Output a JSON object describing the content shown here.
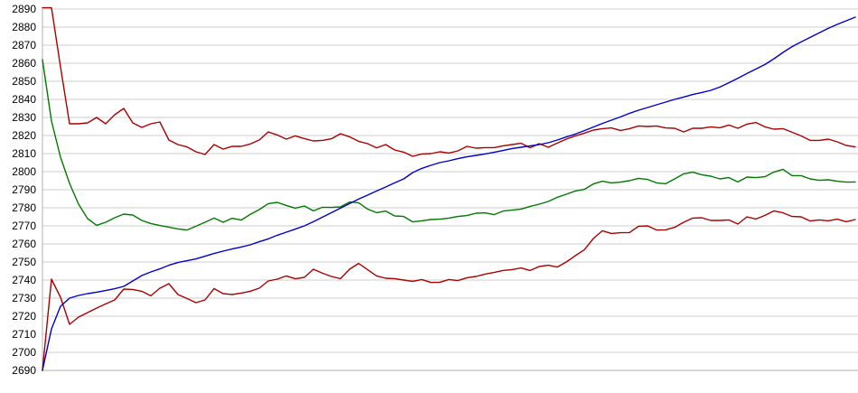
{
  "chart_data": {
    "type": "line",
    "title": "",
    "legend": "none",
    "grid": "horizontal",
    "x_axis": {
      "labels_visible": false,
      "unit": "sample-index",
      "count": 91
    },
    "y_axis": {
      "min": 2690,
      "max": 2890,
      "tick_step": 10,
      "tick_labels": [
        "2890",
        "2880",
        "2870",
        "2860",
        "2850",
        "2840",
        "2830",
        "2820",
        "2810",
        "2800",
        "2790",
        "2780",
        "2770",
        "2760",
        "2750",
        "2740",
        "2730",
        "2720",
        "2710",
        "2700",
        "2690"
      ]
    },
    "colors": {
      "background": "#ffffff",
      "grid": "#cccccc",
      "axis": "#b0b0b0",
      "label": "#000000",
      "red": "#aa0000",
      "green": "#007a00",
      "blue": "#0000cc"
    },
    "series": [
      {
        "name": "red-upper-band-line",
        "color": "#aa0000",
        "values": [
          2890.7,
          2890.7,
          2858,
          2826.5,
          2826.5,
          2827,
          2830,
          2826.5,
          2831.5,
          2835,
          2827,
          2824.5,
          2826.5,
          2827.5,
          2817.5,
          2815,
          2813.7,
          2811,
          2809.5,
          2815,
          2812.5,
          2814,
          2814,
          2815.3,
          2817.5,
          2822,
          2820.3,
          2818,
          2819.8,
          2818.3,
          2817,
          2817.3,
          2818.2,
          2821,
          2819.3,
          2816.8,
          2815.5,
          2813.2,
          2815,
          2812,
          2810.8,
          2808.5,
          2809.8,
          2810,
          2811,
          2810.3,
          2811.5,
          2814,
          2813,
          2813.3,
          2813.3,
          2814.3,
          2815,
          2815.7,
          2813.2,
          2815.5,
          2813.5,
          2815.8,
          2818,
          2819.8,
          2821.3,
          2823,
          2823.8,
          2824.2,
          2822.8,
          2823.8,
          2825.3,
          2825,
          2825.3,
          2824.2,
          2824,
          2822,
          2824,
          2824,
          2824.8,
          2824.3,
          2825.8,
          2824,
          2826.3,
          2827.2,
          2824.8,
          2823.5,
          2823.8,
          2821.8,
          2819.8,
          2817.3,
          2817.3,
          2818,
          2816.5,
          2814.5,
          2813.7
        ]
      },
      {
        "name": "green-middle-line",
        "color": "#007a00",
        "values": [
          2862,
          2828,
          2808,
          2793.5,
          2782,
          2774,
          2770.3,
          2772,
          2774.5,
          2776.5,
          2776,
          2773,
          2771.3,
          2770.2,
          2769.3,
          2768.3,
          2767.7,
          2769.8,
          2772,
          2774.3,
          2772,
          2774.2,
          2773.2,
          2776.3,
          2779,
          2782.3,
          2783,
          2781.3,
          2779.8,
          2781,
          2778.3,
          2780.3,
          2780.2,
          2780.5,
          2783.2,
          2782.8,
          2779.3,
          2777.3,
          2778.2,
          2775.5,
          2775.2,
          2772.2,
          2772.8,
          2773.5,
          2773.7,
          2774.3,
          2775.2,
          2775.7,
          2777,
          2777.2,
          2776.2,
          2778.2,
          2778.7,
          2779.3,
          2780.8,
          2782,
          2783.5,
          2785.8,
          2787.5,
          2789.3,
          2790.2,
          2793.2,
          2794.7,
          2793.8,
          2794.2,
          2795,
          2796.3,
          2795.7,
          2793.8,
          2793.3,
          2796,
          2798.8,
          2799.7,
          2798.3,
          2797.5,
          2796,
          2796.7,
          2794.3,
          2797,
          2796.7,
          2797.2,
          2799.8,
          2801.3,
          2797.8,
          2797.8,
          2796,
          2795.2,
          2795.5,
          2794.7,
          2794.2,
          2794.3
        ]
      },
      {
        "name": "red-lower-band-line",
        "color": "#aa0000",
        "values": [
          2690,
          2740.5,
          2730.5,
          2715.5,
          2719.5,
          2722,
          2724.5,
          2726.8,
          2729,
          2735,
          2734.8,
          2733.8,
          2731.3,
          2735.5,
          2738,
          2732,
          2729.8,
          2727.5,
          2729,
          2735.3,
          2732.5,
          2732,
          2732.8,
          2733.8,
          2735.5,
          2739.5,
          2740.5,
          2742.3,
          2740.7,
          2741.5,
          2746,
          2743.8,
          2742,
          2740.8,
          2746,
          2749.2,
          2745.8,
          2742.3,
          2741,
          2740.8,
          2740,
          2739.3,
          2740.3,
          2738.7,
          2738.8,
          2740.3,
          2739.7,
          2741.3,
          2742,
          2743.3,
          2744.2,
          2745.3,
          2745.8,
          2746.7,
          2745.3,
          2747.5,
          2748.2,
          2747.2,
          2750,
          2753.5,
          2756.8,
          2763,
          2767.3,
          2765.8,
          2766.2,
          2766.3,
          2769.8,
          2770,
          2767.7,
          2767.8,
          2769.2,
          2772,
          2774.3,
          2774.5,
          2773,
          2773,
          2773.3,
          2771,
          2775,
          2773.8,
          2775.8,
          2778.3,
          2777.2,
          2775.2,
          2775,
          2772.7,
          2773.3,
          2772.8,
          2773.7,
          2772.3,
          2773.5
        ]
      },
      {
        "name": "blue-rising-line",
        "color": "#0000cc",
        "values": [
          2690,
          2713,
          2725.5,
          2730,
          2731.5,
          2732.5,
          2733.3,
          2734.2,
          2735.2,
          2736.5,
          2739.5,
          2742.5,
          2744.5,
          2746.2,
          2748.2,
          2749.7,
          2750.7,
          2751.7,
          2753.2,
          2754.7,
          2756,
          2757.2,
          2758.3,
          2759.5,
          2761.2,
          2762.8,
          2764.8,
          2766.5,
          2768.2,
          2770,
          2772.3,
          2774.8,
          2777.3,
          2779.8,
          2782.3,
          2784.8,
          2787,
          2789.3,
          2791.5,
          2793.8,
          2796,
          2799.5,
          2801.8,
          2803.5,
          2805,
          2806,
          2807.2,
          2808.2,
          2809,
          2809.8,
          2810.7,
          2811.7,
          2812.8,
          2813.5,
          2814.3,
          2815,
          2816,
          2817.5,
          2819.2,
          2820.8,
          2822.7,
          2824.7,
          2826.7,
          2828.5,
          2830.3,
          2832.3,
          2834,
          2835.5,
          2837,
          2838.5,
          2840,
          2841.3,
          2842.7,
          2843.8,
          2845,
          2846.8,
          2849.2,
          2851.7,
          2854.3,
          2856.8,
          2859.3,
          2862.5,
          2866,
          2869.2,
          2871.8,
          2874.3,
          2876.8,
          2879.3,
          2881.5,
          2883.5,
          2885.5
        ]
      }
    ]
  }
}
